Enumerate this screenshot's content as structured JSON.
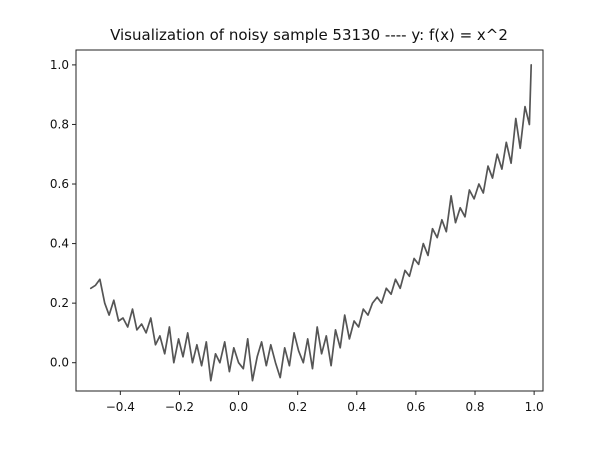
{
  "chart_data": {
    "type": "line",
    "title": "Visualization of noisy sample 53130 ---- y: f(x) = x^2",
    "xlabel": "",
    "ylabel": "",
    "xlim": [
      -0.55,
      1.03
    ],
    "ylim": [
      -0.095,
      1.05
    ],
    "xticks": [
      -0.4,
      -0.2,
      0.0,
      0.2,
      0.4,
      0.6,
      0.8,
      1.0
    ],
    "xtick_labels": [
      "−0.4",
      "−0.2",
      "0.0",
      "0.2",
      "0.4",
      "0.6",
      "0.8",
      "1.0"
    ],
    "yticks": [
      0.0,
      0.2,
      0.4,
      0.6,
      0.8,
      1.0
    ],
    "ytick_labels": [
      "0.0",
      "0.2",
      "0.4",
      "0.6",
      "0.8",
      "1.0"
    ],
    "grid": false,
    "line_color": "#555555",
    "series": [
      {
        "x": [
          -0.5,
          -0.484,
          -0.469,
          -0.453,
          -0.438,
          -0.422,
          -0.406,
          -0.391,
          -0.375,
          -0.359,
          -0.344,
          -0.328,
          -0.313,
          -0.297,
          -0.281,
          -0.266,
          -0.25,
          -0.234,
          -0.219,
          -0.203,
          -0.188,
          -0.172,
          -0.156,
          -0.141,
          -0.125,
          -0.109,
          -0.094,
          -0.078,
          -0.063,
          -0.047,
          -0.031,
          -0.016,
          0.0,
          0.016,
          0.031,
          0.047,
          0.063,
          0.078,
          0.094,
          0.109,
          0.125,
          0.141,
          0.156,
          0.172,
          0.188,
          0.203,
          0.219,
          0.234,
          0.25,
          0.266,
          0.281,
          0.297,
          0.313,
          0.328,
          0.344,
          0.359,
          0.375,
          0.391,
          0.406,
          0.422,
          0.438,
          0.453,
          0.469,
          0.484,
          0.5,
          0.516,
          0.531,
          0.547,
          0.563,
          0.578,
          0.594,
          0.609,
          0.625,
          0.641,
          0.656,
          0.672,
          0.688,
          0.703,
          0.719,
          0.734,
          0.75,
          0.766,
          0.781,
          0.797,
          0.813,
          0.828,
          0.844,
          0.859,
          0.875,
          0.891,
          0.906,
          0.922,
          0.938,
          0.953,
          0.969,
          0.984,
          0.99
        ],
        "y": [
          0.25,
          0.26,
          0.28,
          0.2,
          0.16,
          0.21,
          0.14,
          0.15,
          0.12,
          0.18,
          0.11,
          0.13,
          0.1,
          0.15,
          0.06,
          0.09,
          0.03,
          0.12,
          0.0,
          0.08,
          0.02,
          0.1,
          0.0,
          0.06,
          -0.01,
          0.07,
          -0.06,
          0.03,
          0.0,
          0.07,
          -0.03,
          0.05,
          0.0,
          -0.02,
          0.08,
          -0.06,
          0.02,
          0.07,
          -0.01,
          0.06,
          0.0,
          -0.05,
          0.05,
          -0.01,
          0.1,
          0.04,
          0.0,
          0.08,
          -0.02,
          0.12,
          0.03,
          0.09,
          -0.01,
          0.11,
          0.05,
          0.16,
          0.08,
          0.14,
          0.12,
          0.18,
          0.16,
          0.2,
          0.22,
          0.2,
          0.25,
          0.23,
          0.28,
          0.25,
          0.31,
          0.29,
          0.35,
          0.33,
          0.4,
          0.36,
          0.45,
          0.42,
          0.48,
          0.44,
          0.56,
          0.47,
          0.52,
          0.49,
          0.58,
          0.55,
          0.6,
          0.57,
          0.66,
          0.62,
          0.7,
          0.65,
          0.74,
          0.67,
          0.82,
          0.72,
          0.86,
          0.8,
          1.0
        ]
      }
    ]
  }
}
